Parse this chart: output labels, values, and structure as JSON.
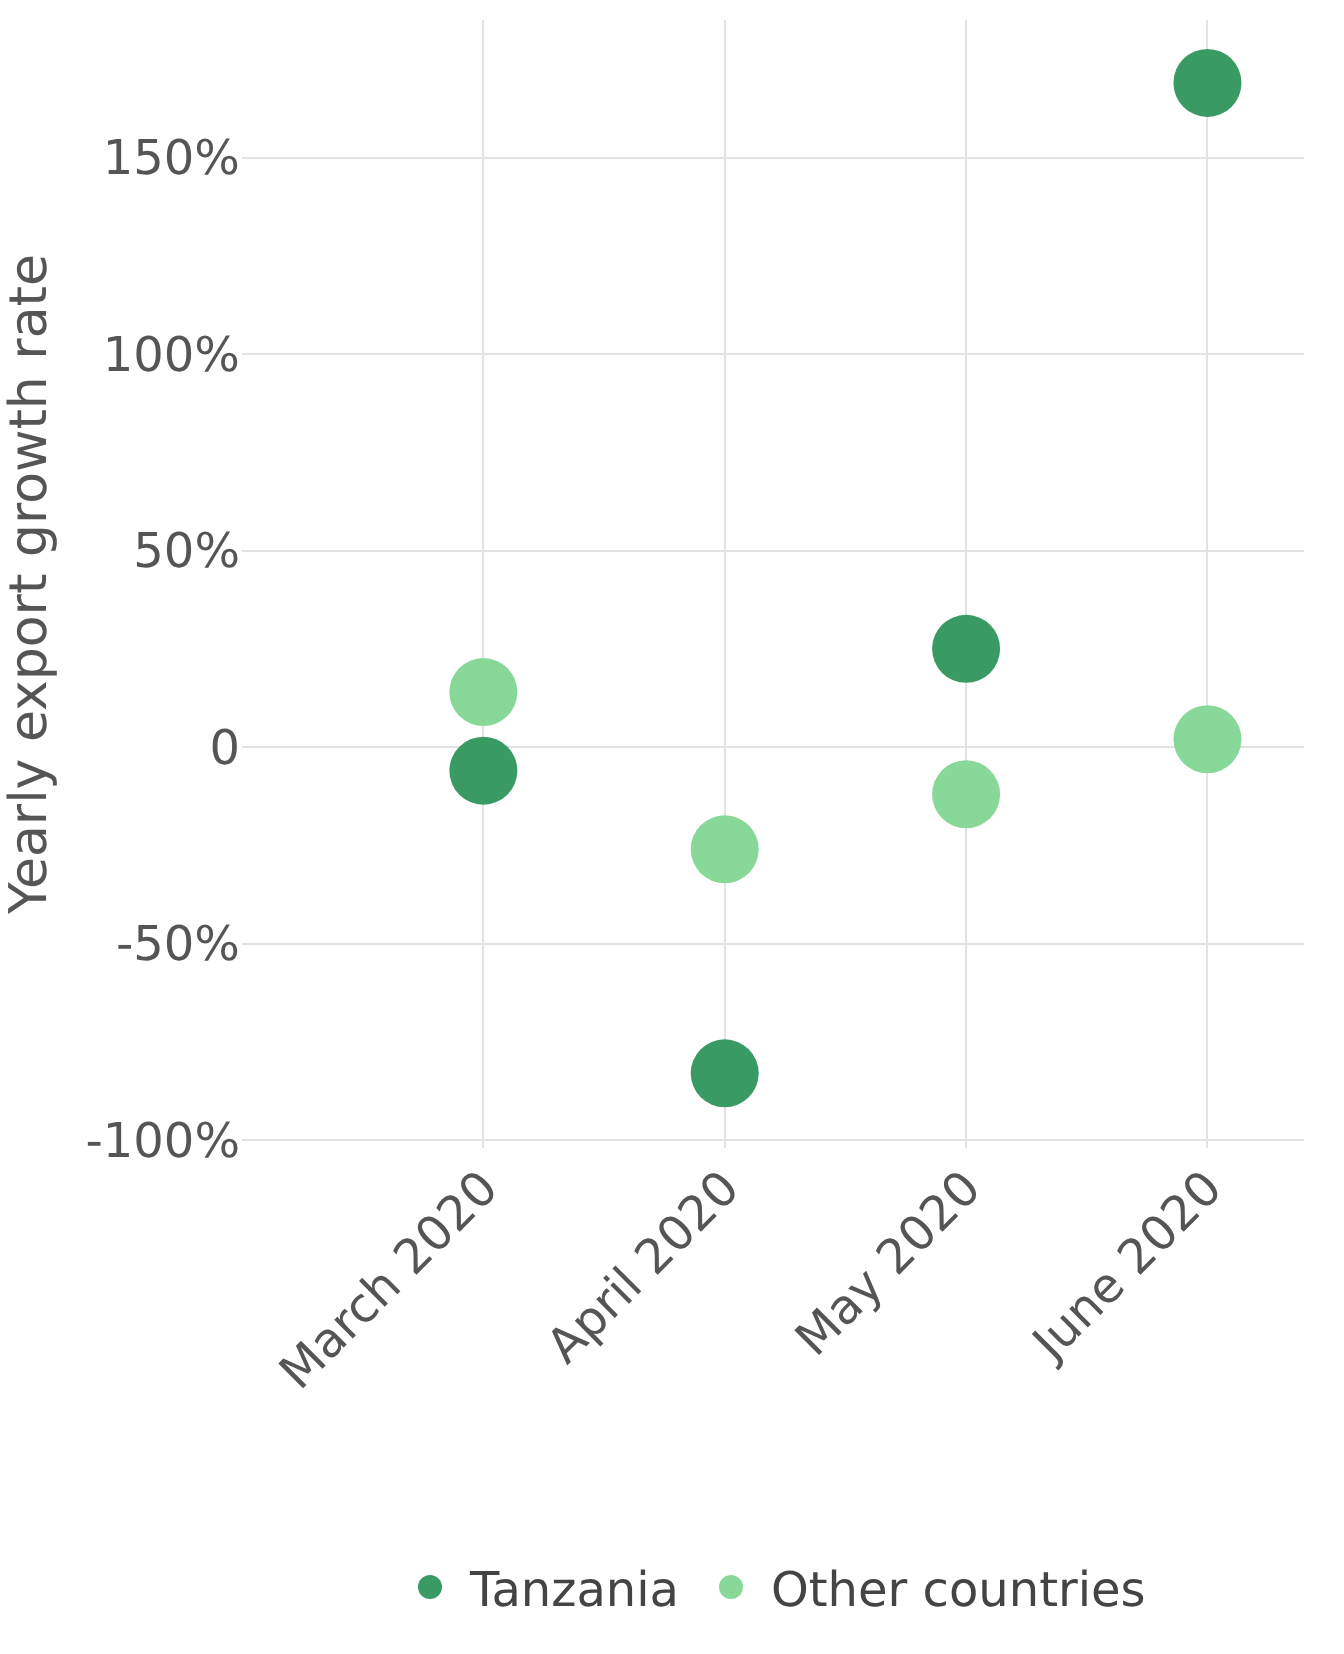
{
  "chart_data": {
    "type": "scatter",
    "ylabel": "Yearly export growth rate",
    "categories": [
      "March 2020",
      "April 2020",
      "May 2020",
      "June 2020"
    ],
    "series": [
      {
        "name": "Tanzania",
        "color": "#3a9a64",
        "values": [
          -6,
          -83,
          25,
          169
        ]
      },
      {
        "name": "Other countries",
        "color": "#88d89a",
        "values": [
          14,
          -26,
          -12,
          2
        ]
      }
    ],
    "ylim": [
      -102,
      185
    ],
    "yticks": [
      {
        "value": -100,
        "label": "-100%"
      },
      {
        "value": -50,
        "label": "-50%"
      },
      0,
      {
        "value": 50,
        "label": "50%"
      },
      {
        "value": 100,
        "label": "100%"
      },
      {
        "value": 150,
        "label": "150%"
      }
    ],
    "grid": true,
    "legend": "bottom",
    "marker": "circle"
  }
}
